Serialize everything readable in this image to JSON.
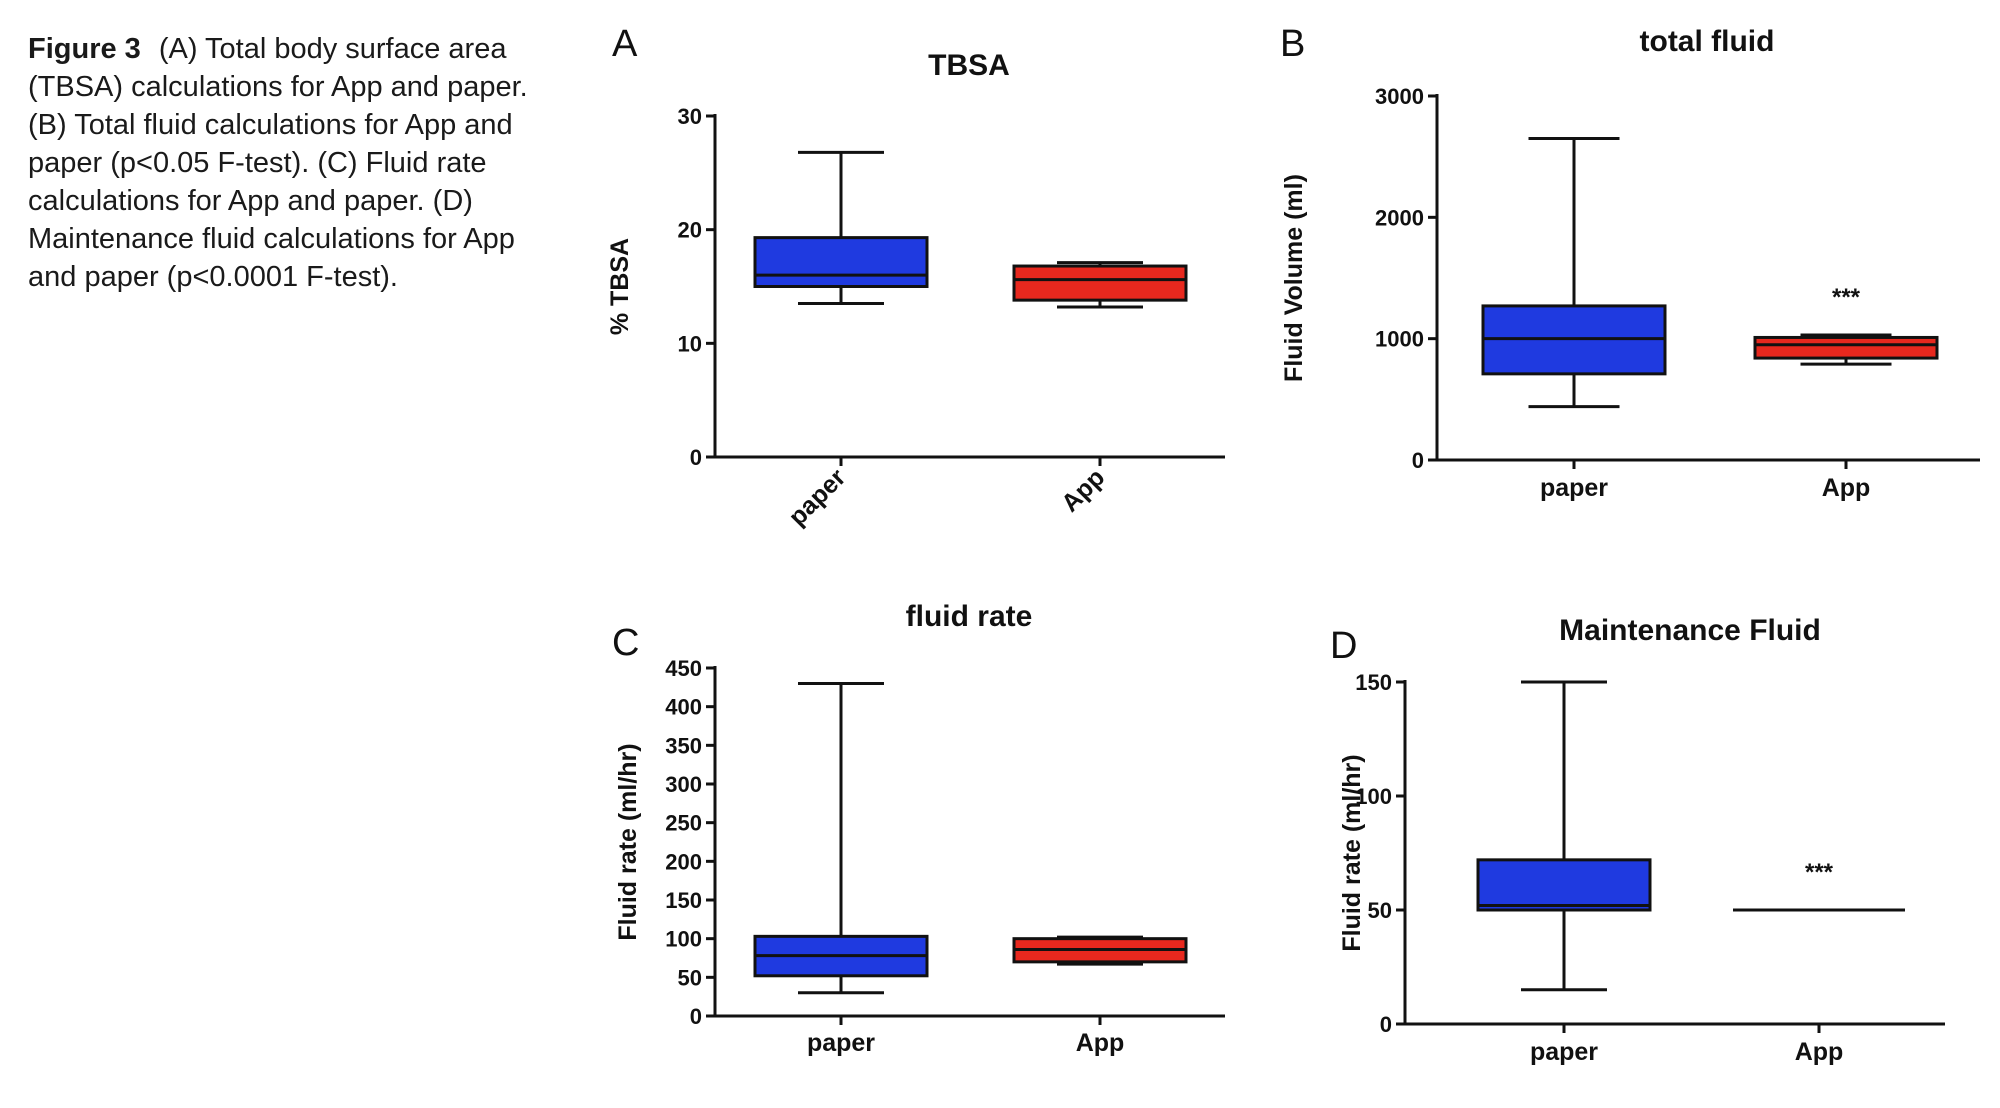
{
  "caption": {
    "lead": "Figure 3",
    "text": "(A) Total body surface area (TBSA) calculations for App and paper. (B) Total fluid calculations for App and paper (p<0.05 F-test). (C) Fluid rate calculations for App and paper. (D) Maintenance fluid calculations for App and paper (p<0.0001 F-test)."
  },
  "colors": {
    "paper": "#1f3ae0",
    "app": "#e8281e",
    "axis": "#111111"
  },
  "chart_data": [
    {
      "panel": "A",
      "type": "box",
      "title": "TBSA",
      "ylabel": "% TBSA",
      "ylim": [
        0,
        30
      ],
      "yticks": [
        0,
        10,
        20,
        30
      ],
      "rotated_categories": true,
      "categories": [
        "paper",
        "App"
      ],
      "boxes": [
        {
          "name": "paper",
          "min": 13.5,
          "q1": 15,
          "median": 16,
          "q3": 19.3,
          "max": 26.8,
          "annotation": ""
        },
        {
          "name": "App",
          "min": 13.2,
          "q1": 13.8,
          "median": 15.6,
          "q3": 16.8,
          "max": 17.1,
          "annotation": ""
        }
      ]
    },
    {
      "panel": "B",
      "type": "box",
      "title": "total fluid",
      "ylabel": "Fluid Volume (ml)",
      "ylim": [
        0,
        3000
      ],
      "yticks": [
        0,
        1000,
        2000,
        3000
      ],
      "rotated_categories": false,
      "categories": [
        "paper",
        "App"
      ],
      "boxes": [
        {
          "name": "paper",
          "min": 440,
          "q1": 710,
          "median": 1000,
          "q3": 1270,
          "max": 2650,
          "annotation": ""
        },
        {
          "name": "App",
          "min": 790,
          "q1": 840,
          "median": 950,
          "q3": 1010,
          "max": 1030,
          "annotation": "***"
        }
      ]
    },
    {
      "panel": "C",
      "type": "box",
      "title": "fluid rate",
      "ylabel": "Fluid rate (ml/hr)",
      "ylim": [
        0,
        450
      ],
      "yticks": [
        0,
        50,
        100,
        150,
        200,
        250,
        300,
        350,
        400,
        450
      ],
      "rotated_categories": false,
      "categories": [
        "paper",
        "App"
      ],
      "boxes": [
        {
          "name": "paper",
          "min": 30,
          "q1": 52,
          "median": 78,
          "q3": 103,
          "max": 430,
          "annotation": ""
        },
        {
          "name": "App",
          "min": 67,
          "q1": 70,
          "median": 86,
          "q3": 100,
          "max": 102,
          "annotation": ""
        }
      ]
    },
    {
      "panel": "D",
      "type": "box",
      "title": "Maintenance Fluid",
      "ylabel": "Fluid rate (ml/hr)",
      "ylim": [
        0,
        150
      ],
      "yticks": [
        0,
        50,
        100,
        150
      ],
      "rotated_categories": false,
      "categories": [
        "paper",
        "App"
      ],
      "boxes": [
        {
          "name": "paper",
          "min": 15,
          "q1": 50,
          "median": 52,
          "q3": 72,
          "max": 150,
          "annotation": ""
        },
        {
          "name": "App",
          "min": 50,
          "q1": 50,
          "median": 50,
          "q3": 50,
          "max": 50,
          "annotation": "***"
        }
      ]
    }
  ]
}
